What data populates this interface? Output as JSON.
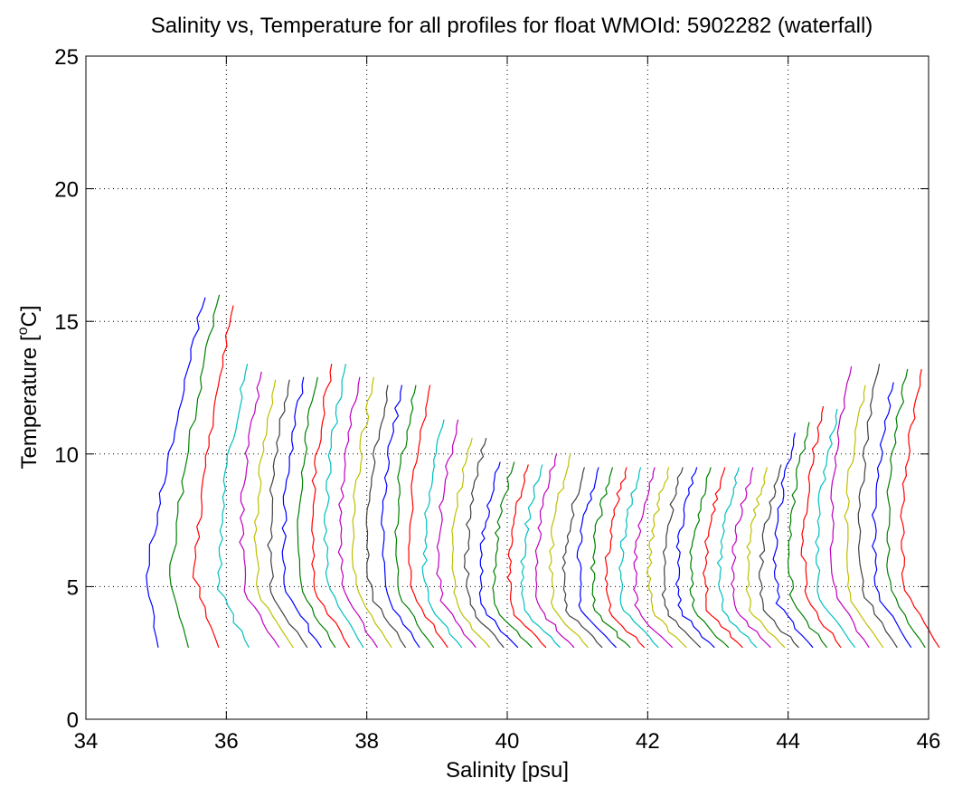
{
  "chart_data": {
    "type": "line",
    "title": "Salinity vs, Temperature for all profiles for float WMOId: 5902282 (waterfall)",
    "xlabel": "Salinity [psu]",
    "ylabel_main": "Temperature [",
    "ylabel_sup": "o",
    "ylabel_end": "C]",
    "xlim": [
      34,
      46
    ],
    "ylim": [
      0,
      25
    ],
    "xticks": [
      "34",
      "36",
      "38",
      "40",
      "42",
      "44",
      "46"
    ],
    "yticks": [
      "0",
      "5",
      "10",
      "15",
      "20",
      "25"
    ],
    "grid": true,
    "colors": [
      "#0000ff",
      "#008000",
      "#ff0000",
      "#00bfbf",
      "#bf00bf",
      "#bfbf00",
      "#404040"
    ],
    "profile_count": 52,
    "profile_offset_psu": 0.2,
    "first_profile_surface_salinity": 35.7,
    "temperature_range_bottom": 2.7,
    "surface_temperatures": [
      15.9,
      16.0,
      15.6,
      13.4,
      13.1,
      12.8,
      12.8,
      12.9,
      12.9,
      13.4,
      13.4,
      12.9,
      12.9,
      12.6,
      12.6,
      12.6,
      12.6,
      11.3,
      11.3,
      10.6,
      10.6,
      9.7,
      9.7,
      9.6,
      9.6,
      10.0,
      10.0,
      9.5,
      9.5,
      9.5,
      9.5,
      9.5,
      9.5,
      9.5,
      9.5,
      9.5,
      9.5,
      9.5,
      9.5,
      9.5,
      9.5,
      9.6,
      10.8,
      11.2,
      11.8,
      11.7,
      13.3,
      12.6,
      13.4,
      12.7,
      13.2,
      13.2
    ]
  }
}
